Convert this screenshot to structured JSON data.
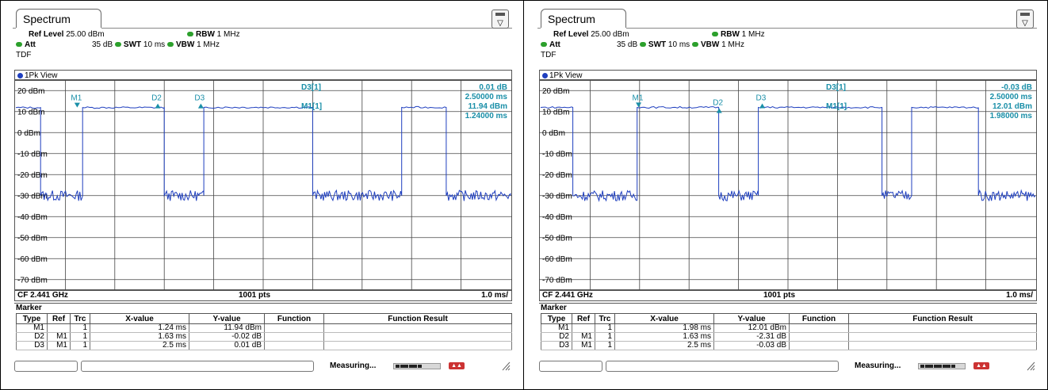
{
  "panels": [
    {
      "tab_title": "Spectrum",
      "ref_level_label": "Ref Level",
      "ref_level_value": "25.00 dBm",
      "att_label": "Att",
      "att_value": "35 dB",
      "swt_label": "SWT",
      "swt_value": "10 ms",
      "rbw_label": "RBW",
      "rbw_value": "1 MHz",
      "vbw_label": "VBW",
      "vbw_value": "1 MHz",
      "tdf": "TDF",
      "view_label": "1Pk View",
      "y_labels": [
        "20 dBm",
        "10 dBm",
        "0 dBm",
        "-10 dBm",
        "-20 dBm",
        "-30 dBm",
        "-40 dBm",
        "-50 dBm",
        "-60 dBm",
        "-70 dBm"
      ],
      "marker_labels": {
        "m1": "M1",
        "d2": "D2",
        "d3": "D3"
      },
      "readout": {
        "d3_name": "D3[1]",
        "d3_y": "0.01 dB",
        "d3_x": "2.50000 ms",
        "m1_name": "M1[1]",
        "m1_y": "11.94 dBm",
        "m1_x": "1.24000 ms"
      },
      "footer": {
        "cf": "CF 2.441 GHz",
        "pts": "1001 pts",
        "div": "1.0 ms/"
      },
      "marker_title": "Marker",
      "table_headers": [
        "Type",
        "Ref",
        "Trc",
        "X-value",
        "Y-value",
        "Function",
        "Function Result"
      ],
      "table_rows": [
        [
          "M1",
          "",
          "1",
          "1.24 ms",
          "11.94 dBm",
          "",
          ""
        ],
        [
          "D2",
          "M1",
          "1",
          "1.63 ms",
          "-0.02 dB",
          "",
          ""
        ],
        [
          "D3",
          "M1",
          "1",
          "2.5 ms",
          "0.01 dB",
          "",
          ""
        ]
      ],
      "status_text": "Measuring...",
      "progress_fraction": 0.55,
      "trace_segments": [
        [
          0.0,
          0.5,
          11.9
        ],
        [
          0.5,
          1.35,
          -30
        ],
        [
          1.35,
          3.0,
          11.9
        ],
        [
          3.0,
          3.8,
          -30
        ],
        [
          3.8,
          6.0,
          12.0
        ],
        [
          6.0,
          7.8,
          -30
        ],
        [
          7.8,
          8.7,
          12.0
        ],
        [
          8.7,
          10.0,
          -30
        ]
      ]
    },
    {
      "tab_title": "Spectrum",
      "ref_level_label": "Ref Level",
      "ref_level_value": "25.00 dBm",
      "att_label": "Att",
      "att_value": "35 dB",
      "swt_label": "SWT",
      "swt_value": "10 ms",
      "rbw_label": "RBW",
      "rbw_value": "1 MHz",
      "vbw_label": "VBW",
      "vbw_value": "1 MHz",
      "tdf": "TDF",
      "view_label": "1Pk View",
      "y_labels": [
        "20 dBm",
        "10 dBm",
        "0 dBm",
        "-10 dBm",
        "-20 dBm",
        "-30 dBm",
        "-40 dBm",
        "-50 dBm",
        "-60 dBm",
        "-70 dBm"
      ],
      "marker_labels": {
        "m1": "M1",
        "d2": "D2",
        "d3": "D3"
      },
      "readout": {
        "d3_name": "D3[1]",
        "d3_y": "-0.03 dB",
        "d3_x": "2.50000 ms",
        "m1_name": "M1[1]",
        "m1_y": "12.01 dBm",
        "m1_x": "1.98000 ms"
      },
      "footer": {
        "cf": "CF 2.441 GHz",
        "pts": "1001 pts",
        "div": "1.0 ms/"
      },
      "marker_title": "Marker",
      "table_headers": [
        "Type",
        "Ref",
        "Trc",
        "X-value",
        "Y-value",
        "Function",
        "Function Result"
      ],
      "table_rows": [
        [
          "M1",
          "",
          "1",
          "1.98 ms",
          "12.01 dBm",
          "",
          ""
        ],
        [
          "D2",
          "M1",
          "1",
          "1.63 ms",
          "-2.31 dB",
          "",
          ""
        ],
        [
          "D3",
          "M1",
          "1",
          "2.5 ms",
          "-0.03 dB",
          "",
          ""
        ]
      ],
      "status_text": "Measuring...",
      "progress_fraction": 0.75,
      "trace_segments": [
        [
          0.0,
          0.65,
          12.0
        ],
        [
          0.65,
          1.95,
          -30
        ],
        [
          1.95,
          3.6,
          12.0
        ],
        [
          3.6,
          4.4,
          -30
        ],
        [
          4.4,
          6.9,
          12.0
        ],
        [
          6.9,
          7.5,
          -30
        ],
        [
          7.5,
          8.85,
          12.0
        ],
        [
          8.85,
          10.0,
          -30
        ]
      ]
    }
  ],
  "chart_data": [
    {
      "type": "line",
      "title": "",
      "ylabel": "dBm",
      "xlabel": "",
      "ylim": [
        -75,
        25
      ],
      "xlim": [
        0,
        10
      ],
      "x_unit": "ms",
      "series": [
        {
          "values_desc": "pulsed signal ~12 dBm on, ~-30 dBm off"
        }
      ],
      "markers": [
        {
          "name": "M1",
          "x": 1.24,
          "y": 11.94
        },
        {
          "name": "D2",
          "x": 2.87,
          "y": 11.92
        },
        {
          "name": "D3",
          "x": 3.74,
          "y": 11.95
        }
      ]
    },
    {
      "type": "line",
      "title": "",
      "ylabel": "dBm",
      "xlabel": "",
      "ylim": [
        -75,
        25
      ],
      "xlim": [
        0,
        10
      ],
      "x_unit": "ms",
      "series": [
        {
          "values_desc": "pulsed signal ~12 dBm on, ~-30 dBm off"
        }
      ],
      "markers": [
        {
          "name": "M1",
          "x": 1.98,
          "y": 12.01
        },
        {
          "name": "D2",
          "x": 3.61,
          "y": 9.7
        },
        {
          "name": "D3",
          "x": 4.48,
          "y": 11.98
        }
      ]
    }
  ]
}
